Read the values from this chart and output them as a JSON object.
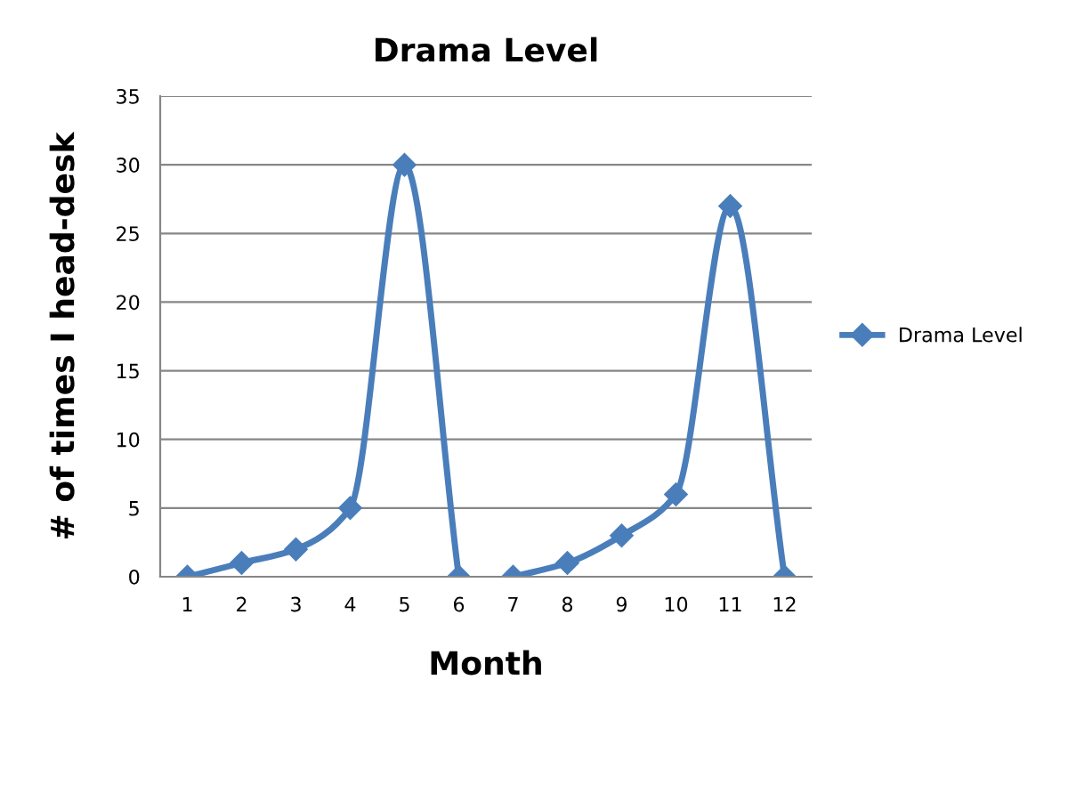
{
  "chart_data": {
    "type": "line",
    "title": "Drama Level",
    "xlabel": "Month",
    "ylabel": "# of times I head-desk",
    "x": [
      1,
      2,
      3,
      4,
      5,
      6,
      6.5,
      7,
      8,
      9,
      10,
      11,
      12
    ],
    "series": [
      {
        "name": "Drama Level",
        "color": "#4a7ebb",
        "values": [
          0,
          1,
          2,
          5,
          30,
          0,
          null,
          0,
          1,
          3,
          6,
          27,
          0
        ]
      }
    ],
    "xlim": [
      0.5,
      12.5
    ],
    "xticks": [
      1,
      2,
      3,
      4,
      5,
      6,
      7,
      8,
      9,
      10,
      11,
      12
    ],
    "ylim": [
      0,
      35
    ],
    "yticks": [
      0,
      5,
      10,
      15,
      20,
      25,
      30,
      35
    ],
    "grid": "y",
    "legend": "right",
    "marker": "diamond",
    "line_style": "solid"
  }
}
